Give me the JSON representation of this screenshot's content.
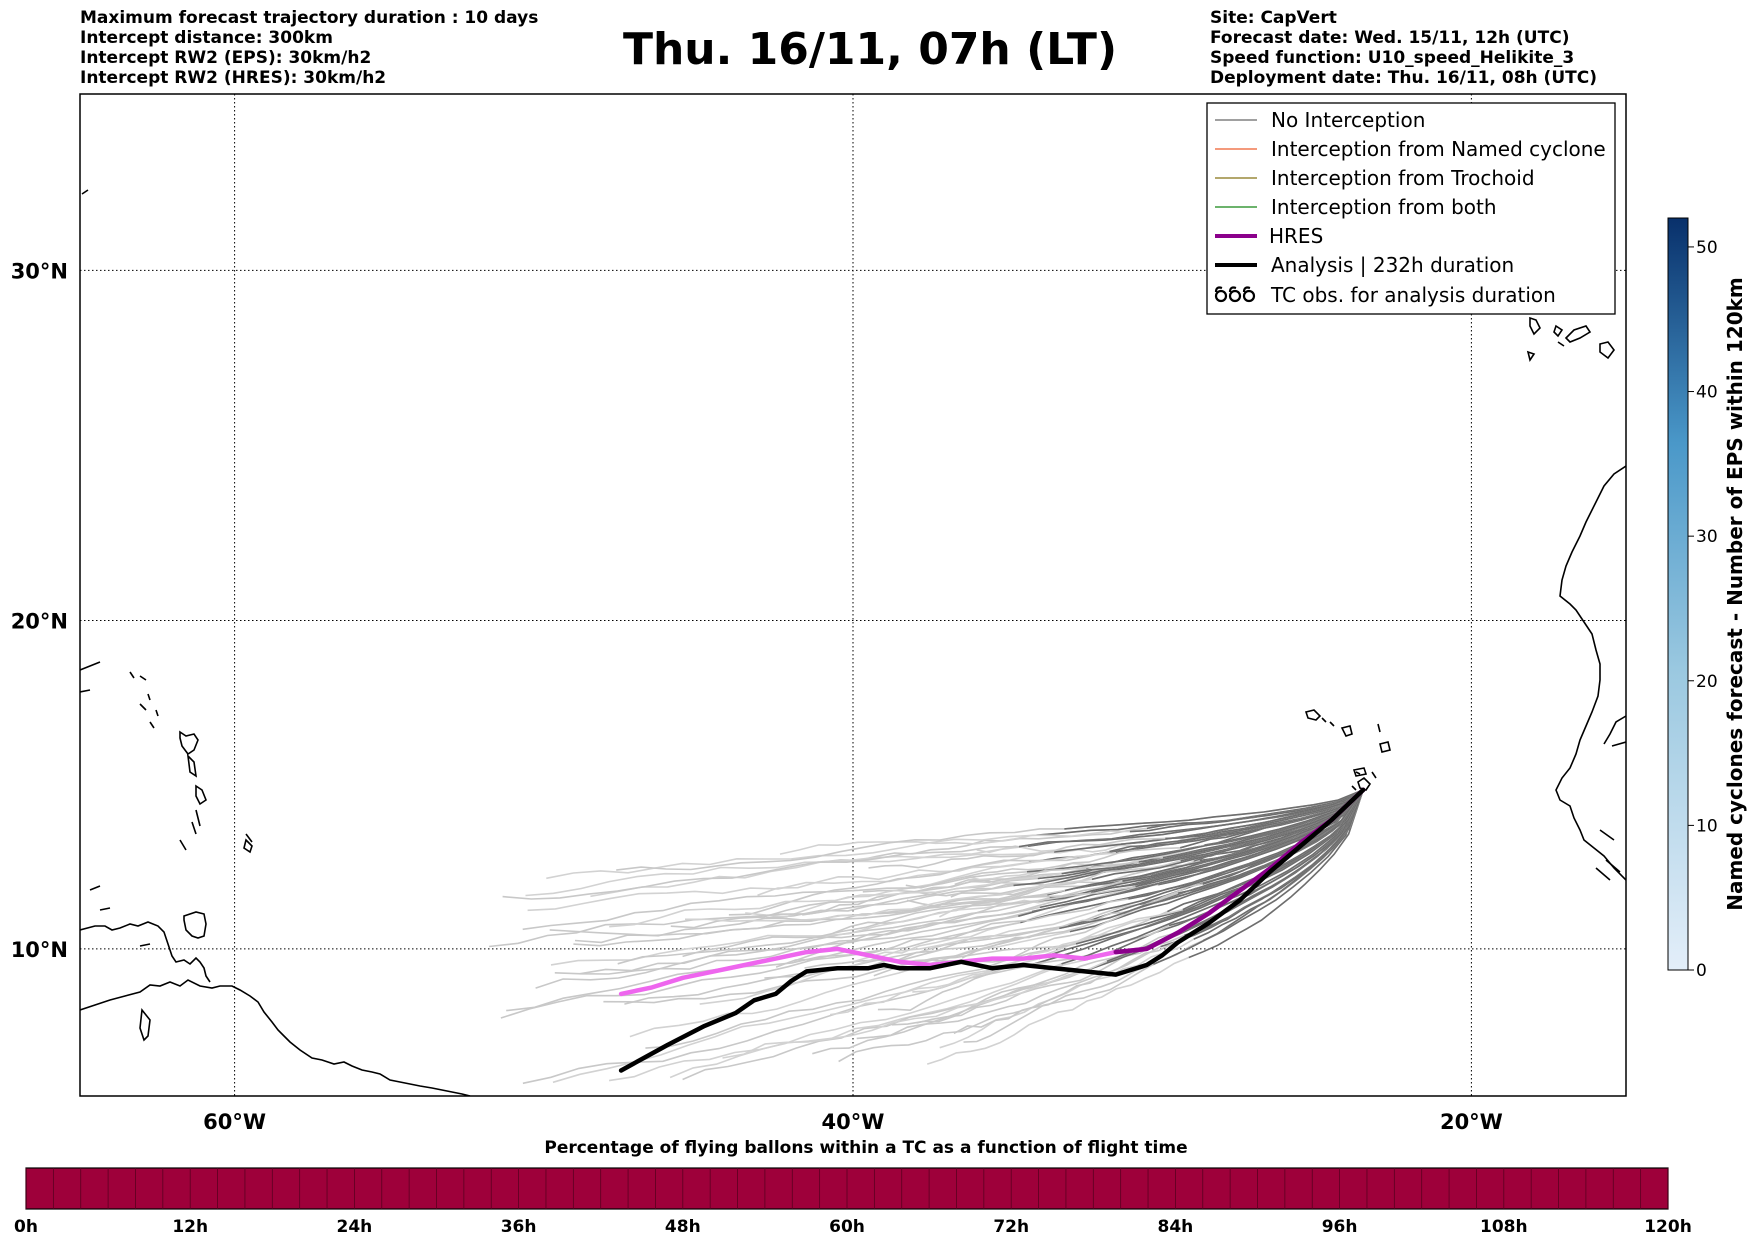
{
  "header_left": [
    "Maximum forecast trajectory duration : 10 days",
    "Intercept distance: 300km",
    "Intercept RW2 (EPS):  30km/h2",
    "Intercept RW2 (HRES): 30km/h2"
  ],
  "title": "Thu. 16/11, 07h (LT)",
  "header_right": [
    "Site: CapVert",
    "Forecast date: Wed. 15/11, 12h (UTC)",
    "Speed function: U10_speed_Helikite_3",
    "Deployment date: Thu. 16/11, 08h (UTC)"
  ],
  "map": {
    "lon_range": [
      -65,
      -15
    ],
    "lat_range": [
      5.4,
      34.7
    ],
    "lon_ticks": [
      {
        "value": -60,
        "label": "60°W"
      },
      {
        "value": -40,
        "label": "40°W"
      },
      {
        "value": -20,
        "label": "20°W"
      }
    ],
    "lat_ticks": [
      {
        "value": 30,
        "label": "30°N"
      },
      {
        "value": 20,
        "label": "20°N"
      },
      {
        "value": 10,
        "label": "10°N"
      }
    ],
    "grid": "dotted",
    "site_lonlat": [
      -23.5,
      14.9
    ]
  },
  "legend": {
    "placement": "top-right",
    "items": [
      {
        "label": "No Interception",
        "color": "#808080",
        "style": "line-thin"
      },
      {
        "label": "Interception from Named cyclone",
        "color": "#f07850",
        "style": "line-thin"
      },
      {
        "label": "Interception from Trochoid",
        "color": "#9a8a3c",
        "style": "line-thin"
      },
      {
        "label": "Interception from both",
        "color": "#3c9a3c",
        "style": "line-thin"
      },
      {
        "label": "HRES",
        "color": "#8b008b",
        "style": "line-thick"
      },
      {
        "label": "Analysis | 232h duration",
        "color": "#000000",
        "style": "line-thick"
      },
      {
        "label": "TC obs. for analysis duration",
        "color": "#000000",
        "style": "cyclone-symbols"
      }
    ]
  },
  "colorbar_right": {
    "label": "Named cyclones forecast - Number of EPS within 120km",
    "range": [
      0,
      52
    ],
    "ticks": [
      "0",
      "10",
      "20",
      "30",
      "40",
      "50"
    ],
    "tick_values": [
      0,
      10,
      20,
      30,
      40,
      50
    ],
    "color_low": "#e3eef9",
    "color_high": "#08306b"
  },
  "bottom_bar": {
    "title": "Percentage of flying ballons within a TC as a function of flight time",
    "color": "#9e003a",
    "ticks": [
      "0h",
      "12h",
      "24h",
      "36h",
      "48h",
      "60h",
      "72h",
      "84h",
      "96h",
      "108h",
      "120h"
    ]
  },
  "chart_data": {
    "type": "line",
    "x_axis": "longitude",
    "y_axis": "latitude",
    "series": [
      {
        "name": "Analysis | 232h duration",
        "color": "#000000",
        "points": [
          [
            -23.5,
            14.9
          ],
          [
            -24.5,
            14.0
          ],
          [
            -25.5,
            13.2
          ],
          [
            -26.5,
            12.4
          ],
          [
            -27.5,
            11.5
          ],
          [
            -28.5,
            10.8
          ],
          [
            -29.5,
            10.2
          ],
          [
            -30.0,
            9.8
          ],
          [
            -30.5,
            9.5
          ],
          [
            -31.5,
            9.2
          ],
          [
            -32.5,
            9.3
          ],
          [
            -33.5,
            9.4
          ],
          [
            -34.5,
            9.5
          ],
          [
            -35.5,
            9.4
          ],
          [
            -36.5,
            9.6
          ],
          [
            -37.5,
            9.4
          ],
          [
            -38.5,
            9.4
          ],
          [
            -39.0,
            9.5
          ],
          [
            -39.5,
            9.4
          ],
          [
            -40.5,
            9.4
          ],
          [
            -41.5,
            9.3
          ],
          [
            -42.0,
            9.0
          ],
          [
            -42.5,
            8.6
          ],
          [
            -43.2,
            8.4
          ],
          [
            -43.8,
            8.0
          ],
          [
            -44.8,
            7.6
          ],
          [
            -46.0,
            7.0
          ],
          [
            -47.5,
            6.2
          ]
        ]
      },
      {
        "name": "HRES",
        "color": "#8b008b",
        "points": [
          [
            -23.5,
            14.9
          ],
          [
            -24.5,
            14.0
          ],
          [
            -25.5,
            13.3
          ],
          [
            -26.5,
            12.5
          ],
          [
            -27.5,
            11.8
          ],
          [
            -28.5,
            11.1
          ],
          [
            -29.5,
            10.5
          ],
          [
            -30.5,
            10.0
          ],
          [
            -31.5,
            9.9
          ],
          [
            -32.5,
            9.7
          ],
          [
            -33.5,
            9.8
          ],
          [
            -34.5,
            9.7
          ],
          [
            -35.5,
            9.7
          ],
          [
            -36.5,
            9.6
          ],
          [
            -37.5,
            9.5
          ],
          [
            -38.5,
            9.6
          ],
          [
            -39.5,
            9.8
          ],
          [
            -40.5,
            10.0
          ],
          [
            -41.5,
            9.9
          ],
          [
            -42.5,
            9.7
          ],
          [
            -43.5,
            9.5
          ],
          [
            -44.5,
            9.3
          ],
          [
            -45.5,
            9.1
          ],
          [
            -46.5,
            8.8
          ],
          [
            -47.5,
            8.6
          ]
        ]
      }
    ]
  }
}
